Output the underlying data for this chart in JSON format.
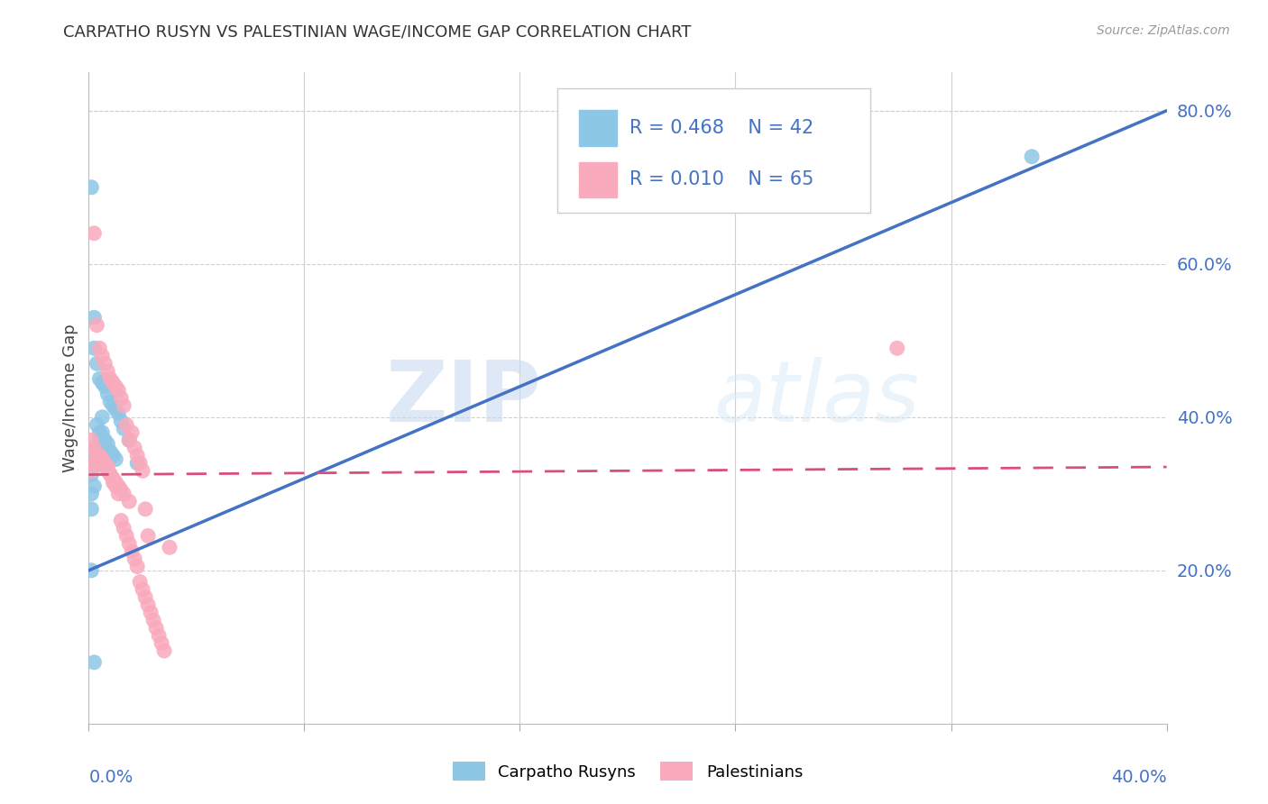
{
  "title": "CARPATHO RUSYN VS PALESTINIAN WAGE/INCOME GAP CORRELATION CHART",
  "source": "Source: ZipAtlas.com",
  "ylabel": "Wage/Income Gap",
  "xlim": [
    0.0,
    0.4
  ],
  "ylim": [
    0.0,
    0.85
  ],
  "yticks": [
    0.2,
    0.4,
    0.6,
    0.8
  ],
  "ytick_labels": [
    "20.0%",
    "40.0%",
    "60.0%",
    "80.0%"
  ],
  "color_blue": "#8ec6e6",
  "color_pink": "#f9aabc",
  "color_blue_line": "#4472c4",
  "color_pink_line": "#d94f7a",
  "watermark_zip": "ZIP",
  "watermark_atlas": "atlas",
  "blue_line_x": [
    0.0,
    0.4
  ],
  "blue_line_y": [
    0.2,
    0.8
  ],
  "pink_line_x": [
    0.0,
    0.4
  ],
  "pink_line_y": [
    0.325,
    0.335
  ],
  "blue_x": [
    0.001,
    0.001,
    0.002,
    0.002,
    0.002,
    0.003,
    0.003,
    0.003,
    0.004,
    0.004,
    0.004,
    0.005,
    0.005,
    0.005,
    0.006,
    0.006,
    0.006,
    0.007,
    0.007,
    0.008,
    0.008,
    0.009,
    0.009,
    0.01,
    0.01,
    0.011,
    0.012,
    0.013,
    0.015,
    0.018,
    0.001,
    0.002,
    0.003,
    0.004,
    0.005,
    0.001,
    0.002,
    0.003,
    0.004,
    0.001,
    0.001,
    0.35
  ],
  "blue_y": [
    0.325,
    0.3,
    0.49,
    0.345,
    0.31,
    0.47,
    0.36,
    0.34,
    0.45,
    0.37,
    0.34,
    0.445,
    0.38,
    0.345,
    0.44,
    0.37,
    0.34,
    0.43,
    0.365,
    0.42,
    0.355,
    0.415,
    0.35,
    0.41,
    0.345,
    0.405,
    0.395,
    0.385,
    0.37,
    0.34,
    0.2,
    0.08,
    0.34,
    0.38,
    0.4,
    0.7,
    0.53,
    0.39,
    0.34,
    0.33,
    0.28,
    0.74
  ],
  "pink_x": [
    0.001,
    0.002,
    0.002,
    0.003,
    0.003,
    0.004,
    0.004,
    0.005,
    0.005,
    0.006,
    0.006,
    0.007,
    0.007,
    0.008,
    0.008,
    0.009,
    0.009,
    0.01,
    0.01,
    0.011,
    0.011,
    0.012,
    0.012,
    0.013,
    0.013,
    0.014,
    0.015,
    0.015,
    0.016,
    0.017,
    0.018,
    0.019,
    0.02,
    0.021,
    0.022,
    0.001,
    0.002,
    0.003,
    0.004,
    0.005,
    0.006,
    0.007,
    0.008,
    0.009,
    0.01,
    0.011,
    0.012,
    0.013,
    0.014,
    0.015,
    0.016,
    0.017,
    0.018,
    0.019,
    0.02,
    0.021,
    0.022,
    0.023,
    0.024,
    0.025,
    0.026,
    0.027,
    0.028,
    0.03,
    0.3
  ],
  "pink_y": [
    0.37,
    0.64,
    0.36,
    0.52,
    0.35,
    0.49,
    0.345,
    0.48,
    0.34,
    0.47,
    0.335,
    0.46,
    0.33,
    0.45,
    0.325,
    0.445,
    0.32,
    0.44,
    0.315,
    0.435,
    0.31,
    0.425,
    0.305,
    0.415,
    0.3,
    0.39,
    0.37,
    0.29,
    0.38,
    0.36,
    0.35,
    0.34,
    0.33,
    0.28,
    0.245,
    0.33,
    0.34,
    0.35,
    0.35,
    0.345,
    0.34,
    0.335,
    0.325,
    0.315,
    0.31,
    0.3,
    0.265,
    0.255,
    0.245,
    0.235,
    0.225,
    0.215,
    0.205,
    0.185,
    0.175,
    0.165,
    0.155,
    0.145,
    0.135,
    0.125,
    0.115,
    0.105,
    0.095,
    0.23,
    0.49
  ]
}
